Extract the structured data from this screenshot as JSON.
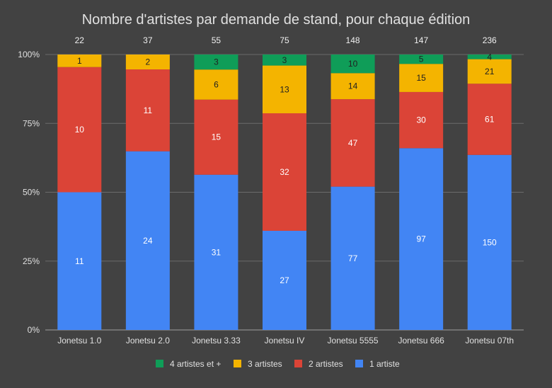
{
  "chart_data": {
    "type": "bar",
    "stacked": true,
    "normalized": true,
    "title": "Nombre d'artistes par demande de stand, pour chaque édition",
    "categories": [
      "Jonetsu 1.0",
      "Jonetsu 2.0",
      "Jonetsu 3.33",
      "Jonetsu IV",
      "Jonetsu 5555",
      "Jonetsu 666",
      "Jonetsu 07th"
    ],
    "totals": [
      "22",
      "37",
      "55",
      "75",
      "148",
      "147",
      "236"
    ],
    "series": [
      {
        "name": "1 artiste",
        "color": "#4285f4",
        "label_color": "#ffffff",
        "values": [
          11,
          24,
          31,
          27,
          77,
          97,
          150
        ]
      },
      {
        "name": "2 artistes",
        "color": "#db4437",
        "label_color": "#ffffff",
        "values": [
          10,
          11,
          15,
          32,
          47,
          30,
          61
        ]
      },
      {
        "name": "3 artistes",
        "color": "#f4b400",
        "label_color": "#212121",
        "values": [
          1,
          2,
          6,
          13,
          14,
          15,
          21
        ]
      },
      {
        "name": "4 artistes et +",
        "color": "#0f9d58",
        "label_color": "#212121",
        "values": [
          0,
          0,
          3,
          3,
          10,
          5,
          4
        ]
      }
    ],
    "y_ticks": [
      "0%",
      "25%",
      "50%",
      "75%",
      "100%"
    ],
    "ylim": [
      0,
      100
    ],
    "grid": true,
    "legend_position": "bottom"
  }
}
